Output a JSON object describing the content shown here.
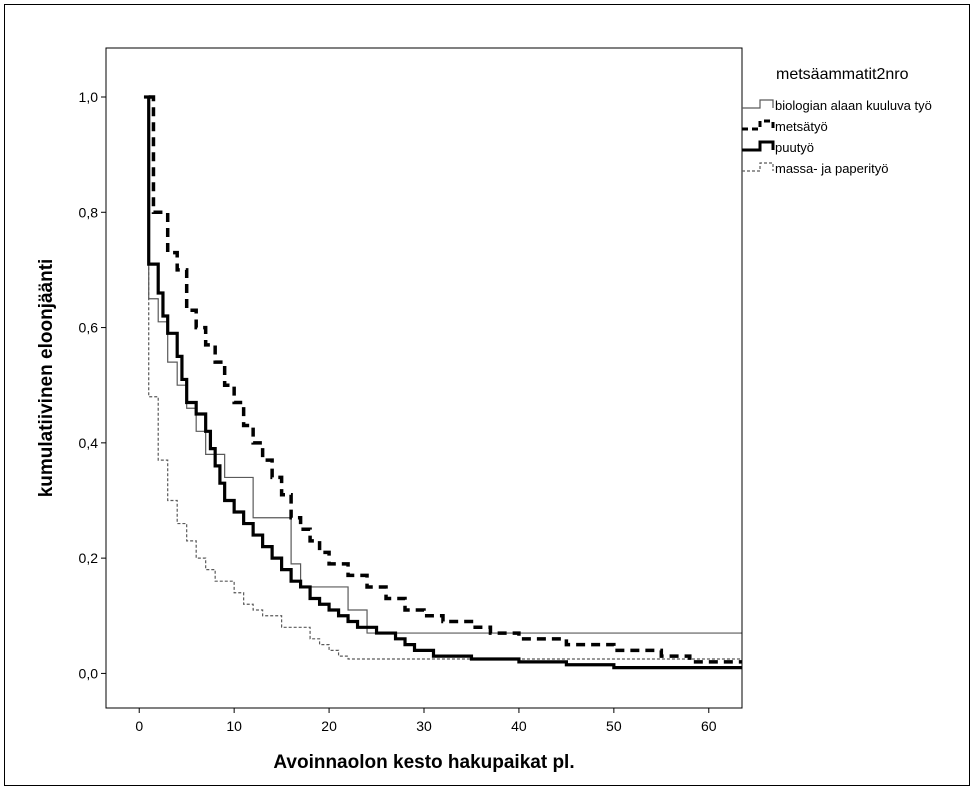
{
  "chart_data": {
    "type": "line",
    "subtype": "step",
    "xlabel": "Avoinnaolon kesto hakupaikat pl.",
    "ylabel": "kumulatiivinen eloonjäänti",
    "xlim": [
      -3.5,
      63.5
    ],
    "ylim": [
      -0.06,
      1.085
    ],
    "x_ticks": [
      0,
      10,
      20,
      30,
      40,
      50,
      60
    ],
    "y_ticks": [
      0.0,
      0.2,
      0.4,
      0.6,
      0.8,
      1.0
    ],
    "x_tick_labels": [
      "0",
      "10",
      "20",
      "30",
      "40",
      "50",
      "60"
    ],
    "y_tick_labels": [
      "0,0",
      "0,2",
      "0,4",
      "0,6",
      "0,8",
      "1,0"
    ],
    "grid": false,
    "legend": {
      "title": "metsäammatit2nro",
      "position": "top-right"
    },
    "series": [
      {
        "name": "biologian alaan kuuluva työ",
        "style": "thin-solid",
        "color": "#5a5a5a",
        "steps": [
          [
            0.5,
            1.0
          ],
          [
            1,
            0.65
          ],
          [
            2,
            0.61
          ],
          [
            3,
            0.54
          ],
          [
            4,
            0.5
          ],
          [
            5,
            0.46
          ],
          [
            6,
            0.42
          ],
          [
            7,
            0.38
          ],
          [
            9,
            0.34
          ],
          [
            12,
            0.27
          ],
          [
            16,
            0.19
          ],
          [
            17,
            0.15
          ],
          [
            22,
            0.11
          ],
          [
            24,
            0.07
          ],
          [
            63.5,
            0.07
          ]
        ]
      },
      {
        "name": "metsätyö",
        "style": "thick-dashed",
        "color": "#000000",
        "steps": [
          [
            1,
            1.0
          ],
          [
            1.5,
            0.8
          ],
          [
            3,
            0.73
          ],
          [
            4,
            0.7
          ],
          [
            5,
            0.63
          ],
          [
            6,
            0.6
          ],
          [
            7,
            0.57
          ],
          [
            8,
            0.54
          ],
          [
            9,
            0.5
          ],
          [
            10,
            0.47
          ],
          [
            11,
            0.43
          ],
          [
            12,
            0.4
          ],
          [
            13,
            0.37
          ],
          [
            14,
            0.34
          ],
          [
            15,
            0.31
          ],
          [
            16,
            0.27
          ],
          [
            17,
            0.25
          ],
          [
            18,
            0.23
          ],
          [
            19,
            0.21
          ],
          [
            20,
            0.19
          ],
          [
            22,
            0.17
          ],
          [
            24,
            0.15
          ],
          [
            26,
            0.13
          ],
          [
            28,
            0.11
          ],
          [
            30,
            0.1
          ],
          [
            32,
            0.09
          ],
          [
            35,
            0.08
          ],
          [
            37,
            0.07
          ],
          [
            40,
            0.06
          ],
          [
            45,
            0.05
          ],
          [
            50,
            0.04
          ],
          [
            55,
            0.03
          ],
          [
            58,
            0.02
          ],
          [
            63.5,
            0.02
          ]
        ]
      },
      {
        "name": "puutyö",
        "style": "thick-solid",
        "color": "#000000",
        "steps": [
          [
            0.5,
            1.0
          ],
          [
            1,
            0.71
          ],
          [
            2,
            0.66
          ],
          [
            2.5,
            0.62
          ],
          [
            3,
            0.59
          ],
          [
            4,
            0.55
          ],
          [
            4.5,
            0.51
          ],
          [
            5,
            0.47
          ],
          [
            6,
            0.45
          ],
          [
            7,
            0.42
          ],
          [
            7.5,
            0.39
          ],
          [
            8,
            0.36
          ],
          [
            8.5,
            0.33
          ],
          [
            9,
            0.3
          ],
          [
            10,
            0.28
          ],
          [
            11,
            0.26
          ],
          [
            12,
            0.24
          ],
          [
            13,
            0.22
          ],
          [
            14,
            0.2
          ],
          [
            15,
            0.18
          ],
          [
            16,
            0.16
          ],
          [
            17,
            0.15
          ],
          [
            18,
            0.13
          ],
          [
            19,
            0.12
          ],
          [
            20,
            0.11
          ],
          [
            21,
            0.1
          ],
          [
            22,
            0.09
          ],
          [
            23,
            0.08
          ],
          [
            25,
            0.07
          ],
          [
            27,
            0.06
          ],
          [
            28,
            0.05
          ],
          [
            29,
            0.04
          ],
          [
            31,
            0.03
          ],
          [
            35,
            0.025
          ],
          [
            40,
            0.02
          ],
          [
            45,
            0.015
          ],
          [
            50,
            0.01
          ],
          [
            63.5,
            0.01
          ]
        ]
      },
      {
        "name": "massa- ja paperityö",
        "style": "thin-dashed",
        "color": "#5a5a5a",
        "steps": [
          [
            0.5,
            1.0
          ],
          [
            1,
            0.48
          ],
          [
            2,
            0.37
          ],
          [
            3,
            0.3
          ],
          [
            4,
            0.26
          ],
          [
            5,
            0.23
          ],
          [
            6,
            0.2
          ],
          [
            7,
            0.18
          ],
          [
            8,
            0.16
          ],
          [
            10,
            0.14
          ],
          [
            11,
            0.12
          ],
          [
            12,
            0.11
          ],
          [
            13,
            0.1
          ],
          [
            15,
            0.08
          ],
          [
            18,
            0.06
          ],
          [
            19,
            0.05
          ],
          [
            20,
            0.04
          ],
          [
            21,
            0.03
          ],
          [
            22,
            0.025
          ],
          [
            63.5,
            0.025
          ]
        ]
      }
    ]
  }
}
